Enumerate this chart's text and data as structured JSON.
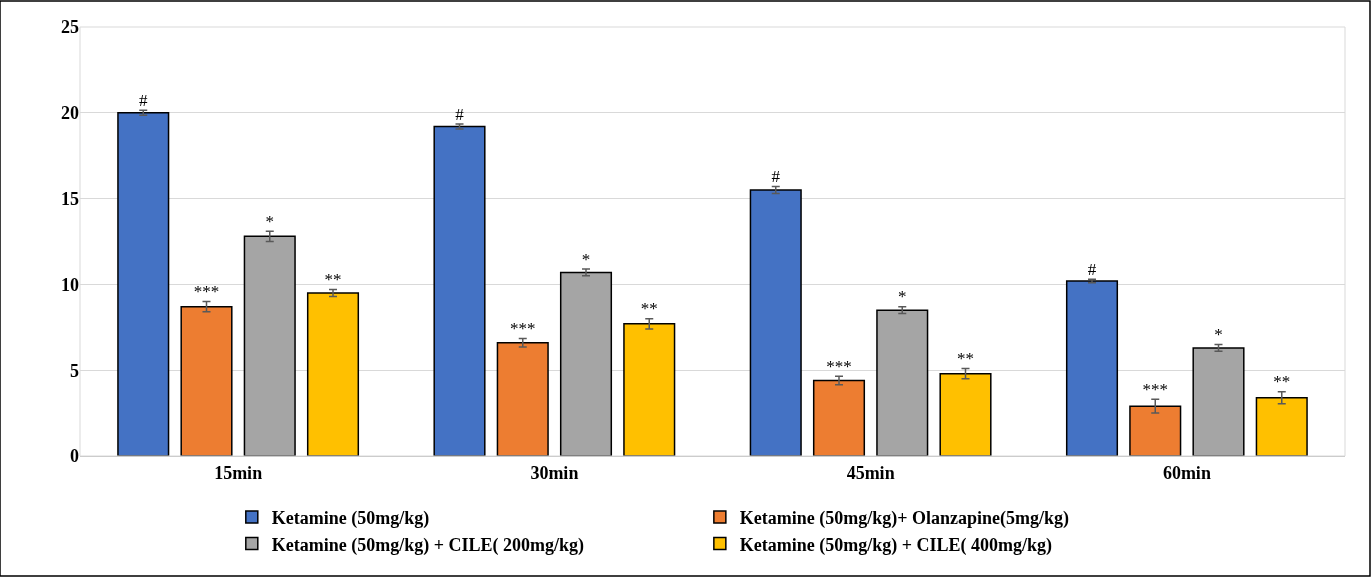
{
  "chart_data": {
    "type": "bar",
    "categories": [
      "15min",
      "30min",
      "45min",
      "60min"
    ],
    "series": [
      {
        "name": "Ketamine (50mg/kg)",
        "color": "#4472c4",
        "values": [
          20.0,
          19.2,
          15.5,
          10.2
        ],
        "errors": [
          0.15,
          0.15,
          0.2,
          0.1
        ],
        "value_labels": [
          "#",
          "#",
          "#",
          "#"
        ]
      },
      {
        "name": "Ketamine (50mg/kg)+ Olanzapine(5mg/kg)",
        "color": "#ed7d31",
        "values": [
          8.7,
          6.6,
          4.4,
          2.9
        ],
        "errors": [
          0.3,
          0.25,
          0.25,
          0.4
        ],
        "value_labels": [
          "***",
          "***",
          "***",
          "***"
        ]
      },
      {
        "name": "Ketamine (50mg/kg) + CILE( 200mg/kg)",
        "color": "#a5a5a5",
        "values": [
          12.8,
          10.7,
          8.5,
          6.3
        ],
        "errors": [
          0.3,
          0.2,
          0.2,
          0.2
        ],
        "value_labels": [
          "*",
          "*",
          "*",
          "*"
        ]
      },
      {
        "name": "Ketamine (50mg/kg) + CILE( 400mg/kg)",
        "color": "#ffc000",
        "values": [
          9.5,
          7.7,
          4.8,
          3.4
        ],
        "errors": [
          0.2,
          0.3,
          0.3,
          0.35
        ],
        "value_labels": [
          "**",
          "**",
          "**",
          "**"
        ]
      }
    ],
    "ylim": [
      0,
      25
    ],
    "yticks": [
      0,
      5,
      10,
      15,
      20,
      25
    ],
    "grid": "y",
    "legend": "bottom"
  }
}
